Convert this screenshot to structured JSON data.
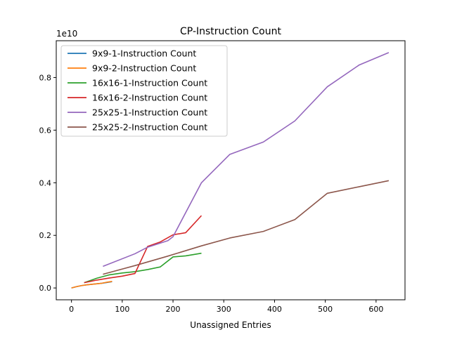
{
  "chart_data": {
    "type": "line",
    "title": "CP-Instruction Count",
    "xlabel": "Unassigned Entries",
    "ylabel": "",
    "y_scale_label": "1e10",
    "xlim": [
      -30,
      657
    ],
    "ylim": [
      -0.045,
      0.94
    ],
    "x_ticks": [
      0,
      100,
      200,
      300,
      400,
      500,
      600
    ],
    "x_tick_labels": [
      "0",
      "100",
      "200",
      "300",
      "400",
      "500",
      "600"
    ],
    "y_ticks": [
      0,
      0.2,
      0.4,
      0.6,
      0.8
    ],
    "y_tick_labels": [
      "0.0",
      "0.2",
      "0.4",
      "0.6",
      "0.8"
    ],
    "grid": false,
    "legend_position": "top-left",
    "series": [
      {
        "name": "9x9-1-Instruction Count",
        "color": "#1f77b4",
        "x": [
          0,
          10,
          20,
          30,
          40,
          50,
          60,
          70,
          80
        ],
        "y": [
          0.0,
          0.005,
          0.009,
          0.012,
          0.014,
          0.016,
          0.018,
          0.021,
          0.024
        ]
      },
      {
        "name": "9x9-2-Instruction Count",
        "color": "#ff7f0e",
        "x": [
          0,
          10,
          20,
          30,
          40,
          50,
          60,
          70,
          80
        ],
        "y": [
          0.0,
          0.005,
          0.009,
          0.012,
          0.014,
          0.016,
          0.018,
          0.022,
          0.025
        ]
      },
      {
        "name": "16x16-1-Instruction Count",
        "color": "#2ca02c",
        "x": [
          25,
          50,
          75,
          100,
          125,
          150,
          175,
          200,
          225,
          256
        ],
        "y": [
          0.02,
          0.037,
          0.05,
          0.057,
          0.062,
          0.07,
          0.08,
          0.118,
          0.122,
          0.132
        ]
      },
      {
        "name": "16x16-2-Instruction Count",
        "color": "#d62728",
        "x": [
          25,
          50,
          75,
          100,
          125,
          150,
          175,
          200,
          225,
          256
        ],
        "y": [
          0.02,
          0.03,
          0.038,
          0.045,
          0.055,
          0.158,
          0.175,
          0.202,
          0.21,
          0.275
        ]
      },
      {
        "name": "25x25-1-Instruction Count",
        "color": "#9467bd",
        "x": [
          62,
          125,
          150,
          190,
          200,
          256,
          312,
          378,
          440,
          504,
          567,
          625
        ],
        "y": [
          0.082,
          0.13,
          0.155,
          0.18,
          0.195,
          0.4,
          0.508,
          0.555,
          0.635,
          0.765,
          0.848,
          0.895
        ]
      },
      {
        "name": "25x25-2-Instruction Count",
        "color": "#8c564b",
        "x": [
          62,
          125,
          188,
          256,
          312,
          378,
          440,
          504,
          567,
          625
        ],
        "y": [
          0.052,
          0.085,
          0.12,
          0.16,
          0.19,
          0.215,
          0.26,
          0.36,
          0.385,
          0.408
        ]
      }
    ]
  }
}
